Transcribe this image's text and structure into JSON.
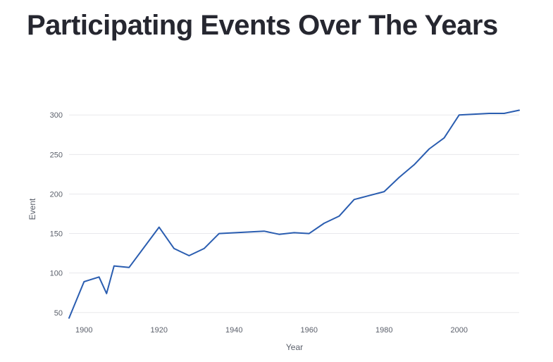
{
  "page": {
    "title": "Participating Events Over The Years"
  },
  "colors": {
    "line": "#2a5db0",
    "grid": "#e8e8ec",
    "text": "#262730",
    "tick": "#5a5f6a"
  },
  "chart_data": {
    "type": "line",
    "title": "Participating Events Over The Years",
    "xlabel": "Year",
    "ylabel": "Event",
    "xlim": [
      1896,
      2016
    ],
    "ylim": [
      40,
      310
    ],
    "xticks": [
      1900,
      1920,
      1940,
      1960,
      1980,
      2000
    ],
    "yticks": [
      50,
      100,
      150,
      200,
      250,
      300
    ],
    "grid": true,
    "series": [
      {
        "x": [
          1896,
          1900,
          1904,
          1906,
          1908,
          1912,
          1920,
          1924,
          1928,
          1932,
          1936,
          1948,
          1952,
          1956,
          1960,
          1964,
          1968,
          1972,
          1976,
          1980,
          1984,
          1988,
          1992,
          1996,
          2000,
          2004,
          2008,
          2012,
          2016
        ],
        "y": [
          43,
          89,
          95,
          74,
          109,
          107,
          158,
          131,
          122,
          131,
          150,
          153,
          149,
          151,
          150,
          163,
          172,
          193,
          198,
          203,
          221,
          237,
          257,
          271,
          300,
          301,
          302,
          302,
          306
        ]
      }
    ]
  }
}
